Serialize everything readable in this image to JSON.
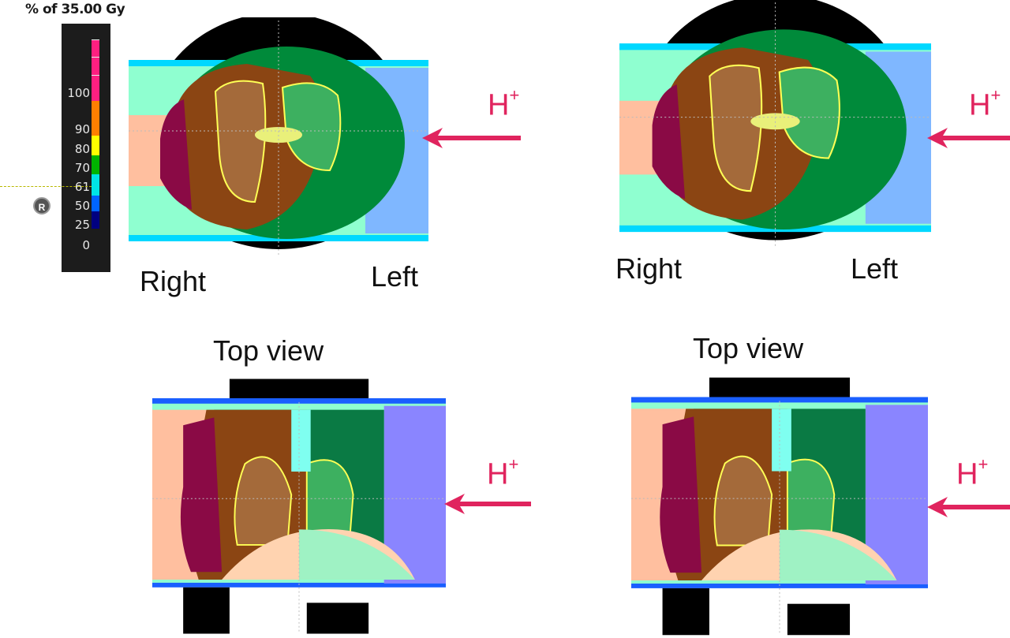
{
  "legend": {
    "title": "% of 35.00 Gy",
    "labels": [
      "100",
      "90",
      "80",
      "70",
      "61",
      "50",
      "25",
      "0"
    ],
    "orientation_marker": "R",
    "colors": [
      "#ff1f80",
      "#ff7f00",
      "#ffff00",
      "#00b400",
      "#00e5e5",
      "#0064ff",
      "#000080"
    ]
  },
  "panels": {
    "top_left": {
      "left_label": "Right",
      "right_label": "Left",
      "beam_label": "H",
      "beam_sup": "+"
    },
    "top_right": {
      "left_label": "Right",
      "right_label": "Left",
      "beam_label": "H",
      "beam_sup": "+"
    },
    "bottom_left": {
      "title": "Top view",
      "beam_label": "H",
      "beam_sup": "+"
    },
    "bottom_right": {
      "title": "Top view",
      "beam_label": "H",
      "beam_sup": "+"
    }
  },
  "colors": {
    "arrow": "#e0245e"
  }
}
